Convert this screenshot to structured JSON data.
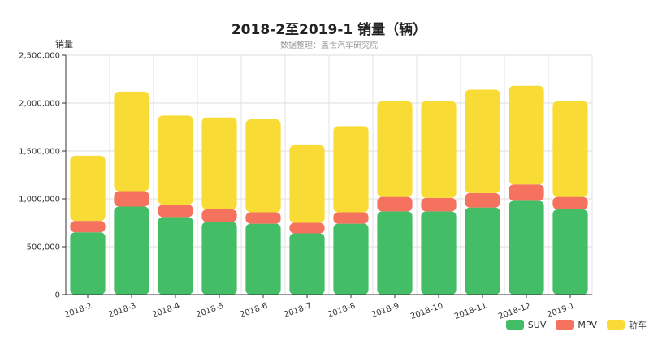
{
  "chart_data": {
    "type": "bar",
    "stacked": true,
    "title": "2018-2至2019-1 销量（辆）",
    "subtitle": "数据整理：盖世汽车研究院",
    "ylabel": "销量",
    "xlabel": "",
    "ylim": [
      0,
      2500000
    ],
    "yticks": [
      "0",
      "500,000",
      "1,000,000",
      "1,500,000",
      "2,000,000",
      "2,500,000"
    ],
    "categories": [
      "2018-2",
      "2018-3",
      "2018-4",
      "2018-5",
      "2018-6",
      "2018-7",
      "2018-8",
      "2018-9",
      "2018-10",
      "2018-11",
      "2018-12",
      "2019-1"
    ],
    "series": [
      {
        "name": "SUV",
        "color": "#44BD67",
        "values": [
          650000,
          920000,
          810000,
          760000,
          740000,
          640000,
          740000,
          870000,
          870000,
          910000,
          980000,
          890000
        ]
      },
      {
        "name": "MPV",
        "color": "#F4725E",
        "values": [
          120000,
          160000,
          130000,
          130000,
          120000,
          110000,
          120000,
          150000,
          140000,
          150000,
          170000,
          130000
        ]
      },
      {
        "name": "轿车",
        "color": "#F8DC35",
        "values": [
          680000,
          1040000,
          930000,
          960000,
          970000,
          810000,
          900000,
          1000000,
          1010000,
          1080000,
          1030000,
          1000000
        ]
      }
    ],
    "grid": true,
    "legend_position": "bottom-right"
  }
}
